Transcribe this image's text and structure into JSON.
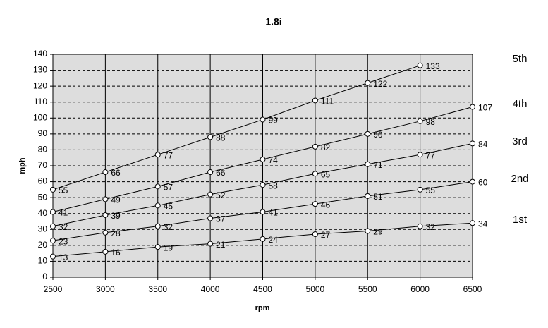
{
  "chart_data": {
    "type": "line",
    "title": "1.8i",
    "x_label": "rpm",
    "y_label": "mph",
    "x": [
      2500,
      3000,
      3500,
      4000,
      4500,
      5000,
      5500,
      6000,
      6500
    ],
    "series": [
      {
        "name": "1st",
        "color": "#000000",
        "values": [
          13,
          16,
          19,
          21,
          24,
          27,
          29,
          32,
          34
        ]
      },
      {
        "name": "2nd",
        "color": "#000000",
        "values": [
          23,
          28,
          32,
          37,
          41,
          46,
          51,
          55,
          60
        ]
      },
      {
        "name": "3rd",
        "color": "#000000",
        "values": [
          32,
          39,
          45,
          52,
          58,
          65,
          71,
          77,
          84
        ]
      },
      {
        "name": "4th",
        "color": "#000000",
        "values": [
          41,
          49,
          57,
          66,
          74,
          82,
          90,
          98,
          107
        ]
      },
      {
        "name": "5th",
        "color": "#000000",
        "values": [
          55,
          66,
          77,
          88,
          99,
          111,
          122,
          133,
          null
        ]
      }
    ],
    "xlim": [
      2500,
      6500
    ],
    "xticks": [
      2500,
      3000,
      3500,
      4000,
      4500,
      5000,
      5500,
      6000,
      6500
    ],
    "ylim": [
      0,
      140
    ],
    "yticks": [
      0,
      10,
      20,
      30,
      40,
      50,
      60,
      70,
      80,
      90,
      100,
      110,
      120,
      130,
      140
    ],
    "grid": true,
    "plot_background": "#dddddd"
  }
}
